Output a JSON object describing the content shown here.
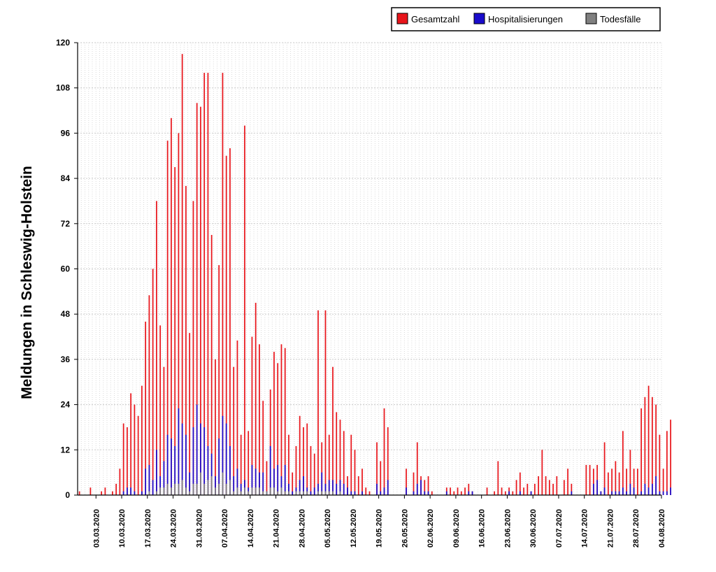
{
  "chart_data": {
    "type": "bar",
    "title": "",
    "xlabel": "",
    "ylabel": "Meldungen in Schleswig-Holstein",
    "ylim": [
      0,
      120
    ],
    "yticks": [
      0,
      12,
      24,
      36,
      48,
      60,
      72,
      84,
      96,
      108,
      120
    ],
    "xlim": [
      "2020-02-27",
      "2020-08-04"
    ],
    "x_tick_labels": [
      "03.03.2020",
      "10.03.2020",
      "17.03.2020",
      "24.03.2020",
      "31.03.2020",
      "07.04.2020",
      "14.04.2020",
      "21.04.2020",
      "28.04.2020",
      "05.05.2020",
      "12.05.2020",
      "19.05.2020",
      "26.05.2020",
      "02.06.2020",
      "09.06.2020",
      "16.06.2020",
      "23.06.2020",
      "30.06.2020",
      "07.07.2020",
      "14.07.2020",
      "21.07.2020",
      "28.07.2020",
      "04.08.2020"
    ],
    "grid": true,
    "legend_position": "top-right",
    "legend": [
      "Gesamtzahl",
      "Hospitalisierungen",
      "Todesfälle"
    ],
    "colors": {
      "Gesamtzahl": "#e8151b",
      "Hospitalisierungen": "#1a0ccc",
      "Todesfälle": "#808080"
    },
    "start_date": "2020-02-27",
    "series": [
      {
        "name": "Gesamtzahl",
        "values": [
          1,
          0,
          0,
          2,
          0,
          0,
          1,
          2,
          0,
          1,
          3,
          7,
          19,
          18,
          27,
          24,
          21,
          29,
          46,
          53,
          60,
          78,
          45,
          34,
          94,
          100,
          87,
          96,
          117,
          82,
          43,
          78,
          104,
          103,
          112,
          112,
          69,
          36,
          61,
          112,
          90,
          92,
          34,
          41,
          16,
          98,
          17,
          42,
          51,
          40,
          25,
          9,
          28,
          38,
          35,
          40,
          39,
          16,
          6,
          13,
          21,
          18,
          19,
          13,
          11,
          49,
          14,
          49,
          16,
          34,
          22,
          20,
          17,
          5,
          16,
          12,
          5,
          7,
          2,
          1,
          0,
          14,
          9,
          23,
          18,
          0,
          0,
          0,
          0,
          7,
          0,
          6,
          14,
          5,
          4,
          5,
          1,
          0,
          0,
          0,
          2,
          2,
          1,
          2,
          1,
          2,
          3,
          1,
          0,
          0,
          0,
          2,
          0,
          1,
          9,
          2,
          1,
          2,
          1,
          4,
          6,
          2,
          3,
          1,
          3,
          5,
          12,
          5,
          4,
          3,
          5,
          0,
          4,
          7,
          3,
          0,
          0,
          0,
          8,
          8,
          7,
          8,
          1,
          14,
          6,
          7,
          9,
          6,
          17,
          7,
          12,
          7,
          7,
          23,
          26,
          29,
          26,
          24,
          16,
          7,
          17,
          20
        ]
      },
      {
        "name": "Hospitalisierungen",
        "values": [
          0,
          0,
          0,
          0,
          0,
          0,
          0,
          0,
          0,
          0,
          0,
          0,
          1,
          2,
          2,
          1,
          0,
          1,
          7,
          8,
          4,
          12,
          5,
          9,
          16,
          15,
          13,
          23,
          19,
          16,
          6,
          18,
          24,
          19,
          18,
          13,
          11,
          5,
          15,
          21,
          19,
          13,
          5,
          7,
          3,
          4,
          2,
          8,
          7,
          6,
          6,
          1,
          13,
          7,
          8,
          5,
          8,
          3,
          1,
          2,
          4,
          5,
          2,
          1,
          2,
          3,
          6,
          3,
          4,
          4,
          3,
          4,
          3,
          2,
          1,
          1,
          0,
          1,
          0,
          0,
          0,
          3,
          1,
          2,
          4,
          0,
          0,
          0,
          0,
          2,
          0,
          1,
          3,
          4,
          1,
          1,
          0,
          0,
          0,
          0,
          1,
          0,
          0,
          0,
          0,
          0,
          1,
          1,
          0,
          0,
          0,
          0,
          0,
          0,
          0,
          0,
          0,
          1,
          0,
          0,
          1,
          0,
          0,
          1,
          0,
          0,
          0,
          0,
          0,
          0,
          0,
          0,
          0,
          0,
          1,
          0,
          0,
          0,
          0,
          0,
          3,
          4,
          1,
          2,
          0,
          1,
          1,
          1,
          2,
          1,
          3,
          2,
          0,
          1,
          3,
          2,
          3,
          5,
          1,
          1,
          1,
          2
        ]
      },
      {
        "name": "Todesfälle",
        "values": [
          0,
          0,
          0,
          0,
          0,
          0,
          0,
          0,
          0,
          0,
          0,
          0,
          0,
          0,
          0,
          0,
          0,
          0,
          0,
          1,
          0,
          1,
          2,
          2,
          3,
          2,
          3,
          3,
          4,
          2,
          1,
          3,
          3,
          6,
          3,
          4,
          5,
          2,
          3,
          6,
          3,
          4,
          1,
          2,
          1,
          2,
          1,
          2,
          2,
          2,
          1,
          1,
          2,
          2,
          1,
          2,
          1,
          1,
          0,
          1,
          1,
          1,
          1,
          0,
          0,
          1,
          1,
          1,
          1,
          1,
          0,
          1,
          0,
          0,
          0,
          0,
          0,
          0,
          0,
          0,
          0,
          0,
          0,
          0,
          0,
          0,
          0,
          0,
          0,
          0,
          0,
          0,
          0,
          0,
          0,
          0,
          0,
          0,
          0,
          0,
          0,
          0,
          0,
          0,
          0,
          0,
          0,
          0,
          0,
          0,
          0,
          0,
          0,
          0,
          0,
          0,
          0,
          0,
          0,
          0,
          0,
          0,
          0,
          0,
          0,
          0,
          0,
          0,
          0,
          0,
          0,
          0,
          0,
          0,
          0,
          0,
          0,
          0,
          0,
          0,
          0,
          0,
          0,
          0,
          0,
          0,
          0,
          0,
          0,
          0,
          0,
          0,
          0,
          0,
          0,
          0,
          0,
          0,
          0,
          0,
          0,
          0
        ]
      }
    ]
  }
}
